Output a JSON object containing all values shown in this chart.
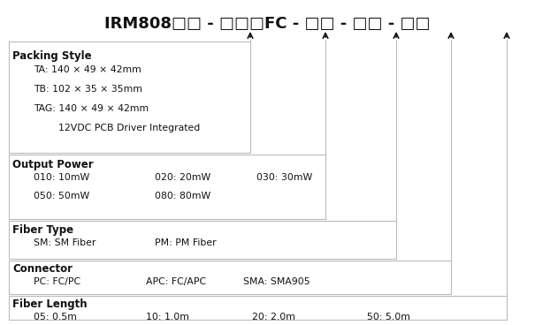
{
  "title": "IRM808□□ - □□□FC - □□ - □□ - □□",
  "bg_color": "#ffffff",
  "text_color": "#111111",
  "line_color": "#bbbbbb",
  "arrow_color": "#111111",
  "title_fontsize": 13.0,
  "header_fontsize": 8.5,
  "item_fontsize": 7.8,
  "sections": {
    "packing_style": {
      "header": "Packing Style",
      "items": [
        "TA: 140 × 49 × 42mm",
        "TB: 102 × 35 × 35mm",
        "TAG: 140 × 49 × 42mm",
        "        12VDC PCB Driver Integrated"
      ]
    },
    "output_power": {
      "header": "Output Power",
      "row1": [
        "010: 10mW",
        "020: 20mW",
        "030: 30mW"
      ],
      "row2": [
        "050: 50mW",
        "080: 80mW"
      ]
    },
    "fiber_type": {
      "header": "Fiber Type",
      "items": [
        "SM: SM Fiber",
        "PM: PM Fiber"
      ]
    },
    "connector": {
      "header": "Connector",
      "items": [
        "PC: FC/PC",
        "APC: FC/APC",
        "SMA: SMA905"
      ]
    },
    "fiber_length": {
      "header": "Fiber Length",
      "items": [
        "05: 0.5m",
        "10: 1.0m",
        "20: 2.0m",
        "50: 5.0m"
      ]
    }
  }
}
